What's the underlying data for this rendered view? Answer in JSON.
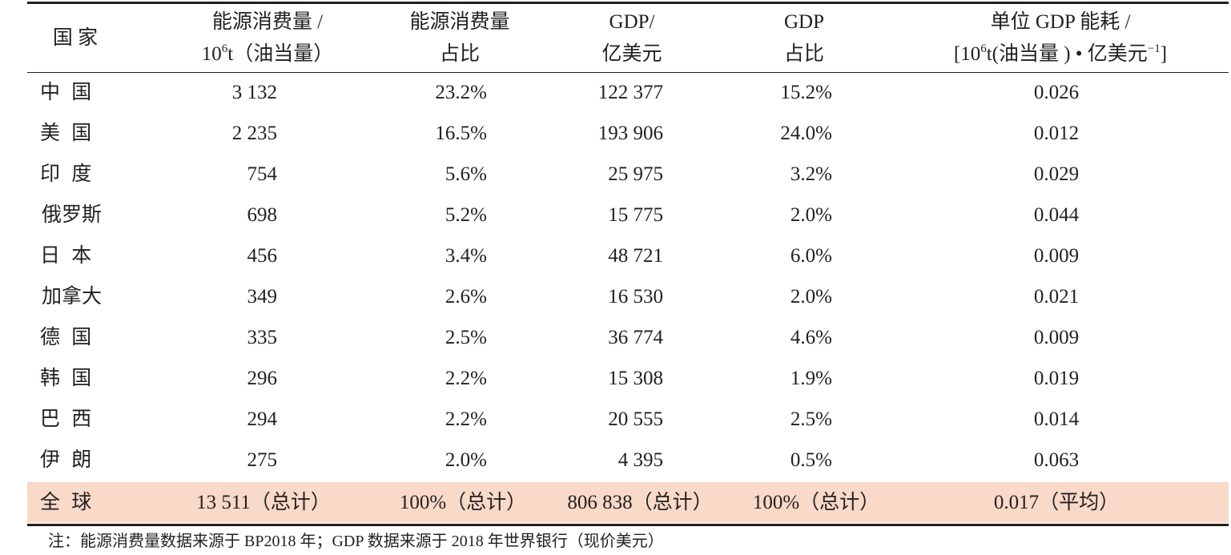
{
  "table": {
    "headers": {
      "country": "国 家",
      "energy_line1": "能源消费量 /",
      "energy_line2_prefix": "10",
      "energy_line2_sup": "6",
      "energy_line2_suffix": "t（油当量）",
      "energy_share_line1": "能源消费量",
      "energy_share_line2": "占比",
      "gdp_line1": "GDP/",
      "gdp_line2": "亿美元",
      "gdp_share_line1": "GDP",
      "gdp_share_line2": "占比",
      "intensity_line1": "单位 GDP 能耗 /",
      "intensity_line2_a": "[10",
      "intensity_line2_sup1": "6",
      "intensity_line2_b": "t(油当量 ) • 亿美元",
      "intensity_line2_sup2": "−1",
      "intensity_line2_c": "]"
    },
    "rows": [
      {
        "country": "中 国",
        "energy": "3 132",
        "energy_share": "23.2%",
        "gdp": "122 377",
        "gdp_share": "15.2%",
        "intensity": "0.026"
      },
      {
        "country": "美 国",
        "energy": "2 235",
        "energy_share": "16.5%",
        "gdp": "193 906",
        "gdp_share": "24.0%",
        "intensity": "0.012"
      },
      {
        "country": "印 度",
        "energy": "754",
        "energy_share": "5.6%",
        "gdp": "25 975",
        "gdp_share": "3.2%",
        "intensity": "0.029"
      },
      {
        "country": "俄罗斯",
        "energy": "698",
        "energy_share": "5.2%",
        "gdp": "15 775",
        "gdp_share": "2.0%",
        "intensity": "0.044"
      },
      {
        "country": "日 本",
        "energy": "456",
        "energy_share": "3.4%",
        "gdp": "48 721",
        "gdp_share": "6.0%",
        "intensity": "0.009"
      },
      {
        "country": "加拿大",
        "energy": "349",
        "energy_share": "2.6%",
        "gdp": "16 530",
        "gdp_share": "2.0%",
        "intensity": "0.021"
      },
      {
        "country": "德 国",
        "energy": "335",
        "energy_share": "2.5%",
        "gdp": "36 774",
        "gdp_share": "4.6%",
        "intensity": "0.009"
      },
      {
        "country": "韩 国",
        "energy": "296",
        "energy_share": "2.2%",
        "gdp": "15 308",
        "gdp_share": "1.9%",
        "intensity": "0.019"
      },
      {
        "country": "巴 西",
        "energy": "294",
        "energy_share": "2.2%",
        "gdp": "20 555",
        "gdp_share": "2.5%",
        "intensity": "0.014"
      },
      {
        "country": "伊 朗",
        "energy": "275",
        "energy_share": "2.0%",
        "gdp": "4 395",
        "gdp_share": "0.5%",
        "intensity": "0.063"
      }
    ],
    "total": {
      "country": "全 球",
      "energy": "13 511（总计）",
      "energy_share": "100%（总计）",
      "gdp": "806 838（总计）",
      "gdp_share": "100%（总计）",
      "intensity": "0.017（平均）"
    }
  },
  "note": "注：能源消费量数据来源于 BP2018 年；GDP 数据来源于 2018 年世界银行（现价美元）",
  "colors": {
    "total_row_bg": "#f9d9c8",
    "text": "#231f20"
  }
}
